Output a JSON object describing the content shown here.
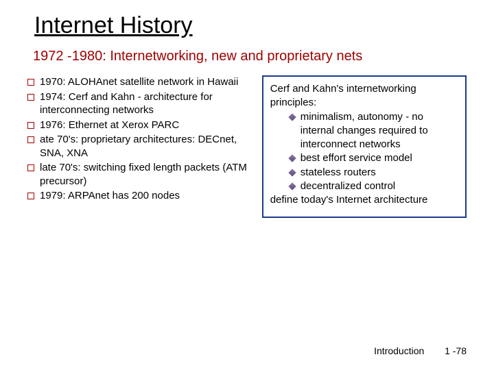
{
  "title": "Internet History",
  "subtitle": "1972 -1980: Internetworking, new and proprietary nets",
  "left_items": [
    "1970: ALOHAnet satellite network in Hawaii",
    "1974: Cerf and Kahn - architecture for interconnecting networks",
    "1976: Ethernet at Xerox PARC",
    "ate 70's: proprietary architectures: DECnet, SNA, XNA",
    "late 70's: switching fixed length packets (ATM precursor)",
    "1979: ARPAnet has 200 nodes"
  ],
  "box_heading": "Cerf and Kahn's internetworking principles:",
  "box_subitems": [
    "minimalism, autonomy - no internal changes required to interconnect networks",
    "best effort service model",
    "stateless routers",
    "decentralized control"
  ],
  "box_footer": "define today's Internet architecture",
  "footer_label": "Introduction",
  "footer_page": "1 -78",
  "colors": {
    "accent_red": "#a00000",
    "box_border": "#1a3a8a",
    "background": "#ffffff",
    "text": "#000000"
  }
}
